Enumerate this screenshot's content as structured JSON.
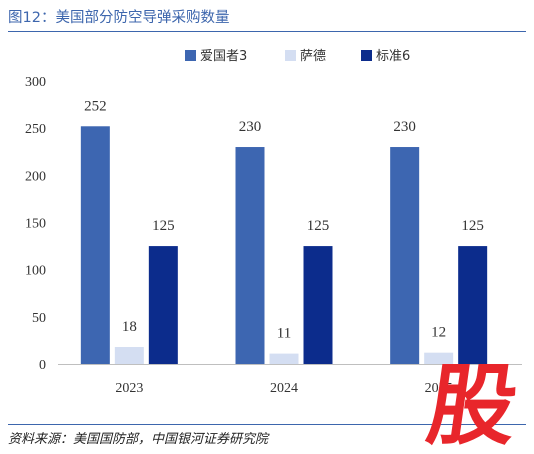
{
  "header": {
    "title": "图12：美国部分防空导弹采购数量"
  },
  "footer": {
    "source": "资料来源：美国国防部，中国银河证券研究院"
  },
  "colors": {
    "accent": "#3d66ad",
    "stamp": "#e8262b"
  },
  "stamp_text": "股",
  "chart_data": {
    "type": "bar",
    "categories": [
      "2023",
      "2024",
      "2025"
    ],
    "series": [
      {
        "name": "爱国者3",
        "values": [
          252,
          230,
          230
        ],
        "color": "#3d66b1"
      },
      {
        "name": "萨德",
        "values": [
          18,
          11,
          12
        ],
        "color": "#d4def2"
      },
      {
        "name": "标准6",
        "values": [
          125,
          125,
          125
        ],
        "color": "#0c2c8c"
      }
    ],
    "title": "",
    "xlabel": "",
    "ylabel": "",
    "ylim": [
      0,
      300
    ],
    "yticks": [
      0,
      50,
      100,
      150,
      200,
      250,
      300
    ],
    "grid": false,
    "legend": "top-right",
    "data_labels": true
  }
}
